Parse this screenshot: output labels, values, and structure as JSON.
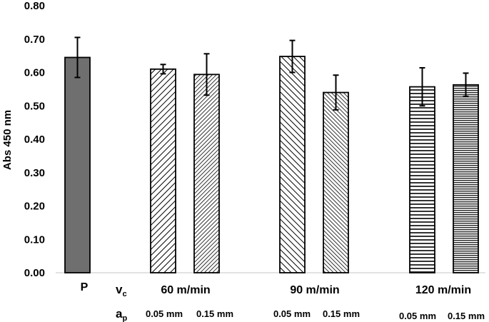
{
  "chart_data": {
    "type": "bar",
    "ylabel": "Abs 450 nm",
    "ylim": [
      0,
      0.8
    ],
    "yticks": [
      "0.00",
      "0.10",
      "0.20",
      "0.30",
      "0.40",
      "0.50",
      "0.60",
      "0.70",
      "0.80"
    ],
    "bars": [
      {
        "label": "P",
        "value": 0.645,
        "error": 0.06,
        "pattern": "solid"
      },
      {
        "label": "60 m/min, 0.05 mm",
        "value": 0.61,
        "error": 0.014,
        "pattern": "diag-up-wide"
      },
      {
        "label": "60 m/min, 0.15 mm",
        "value": 0.594,
        "error": 0.062,
        "pattern": "diag-up-dense"
      },
      {
        "label": "90 m/min, 0.05 mm",
        "value": 0.648,
        "error": 0.048,
        "pattern": "diag-down-wide"
      },
      {
        "label": "90 m/min, 0.15 mm",
        "value": 0.54,
        "error": 0.052,
        "pattern": "diag-down-dense"
      },
      {
        "label": "120 m/min, 0.05 mm",
        "value": 0.557,
        "error": 0.057,
        "pattern": "horiz-wide"
      },
      {
        "label": "120 m/min, 0.15 mm",
        "value": 0.563,
        "error": 0.035,
        "pattern": "horiz-dense"
      }
    ],
    "control_label": "P",
    "vc_symbol": "v",
    "vc_sub": "c",
    "ap_symbol": "a",
    "ap_sub": "p",
    "groups": [
      {
        "speed": "60 m/min",
        "depths": [
          "0.05 mm",
          "0.15 mm"
        ]
      },
      {
        "speed": "90 m/min",
        "depths": [
          "0.05 mm",
          "0.15 mm"
        ]
      },
      {
        "speed": "120 m/min",
        "depths": [
          "0.05 mm",
          "0.15 mm"
        ]
      }
    ],
    "colors": {
      "solid_fill": "#6f6f6f",
      "stroke": "#000000",
      "axis": "#d9d9d9"
    }
  }
}
